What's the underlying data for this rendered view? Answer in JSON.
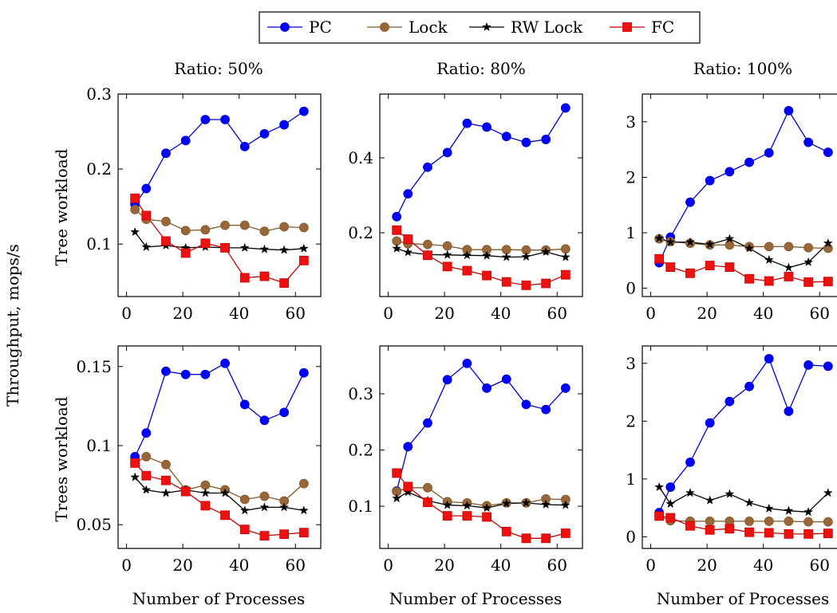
{
  "figure": {
    "shared_ylabel": "Throughput, mops/s",
    "row_labels": [
      "Tree workload",
      "Trees workload"
    ],
    "col_titles": [
      "Ratio: 50%",
      "Ratio: 80%",
      "Ratio: 100%"
    ],
    "xlabel": "Number of Processes"
  },
  "legend": [
    {
      "name": "PC",
      "color": "#0000cc",
      "marker": "circle",
      "marker_fill": "#0000ff"
    },
    {
      "name": "Lock",
      "color": "#7f5926",
      "marker": "circle",
      "marker_fill": "#99663a"
    },
    {
      "name": "RW Lock",
      "color": "#000000",
      "marker": "star",
      "marker_fill": "#000000"
    },
    {
      "name": "FC",
      "color": "#cc0000",
      "marker": "square",
      "marker_fill": "#ee1111"
    }
  ],
  "chart_data": [
    {
      "type": "line",
      "title": "Ratio: 50%",
      "ylabel": "Tree workload",
      "xlabel": "",
      "x": [
        3,
        7,
        14,
        21,
        28,
        35,
        42,
        49,
        56,
        63
      ],
      "xlim": [
        -3,
        69
      ],
      "ylim": [
        0.03,
        0.3
      ],
      "xticks": [
        0,
        20,
        40,
        60
      ],
      "xtick_labels": [
        "0",
        "20",
        "40",
        "60"
      ],
      "yticks": [
        0.1,
        0.2,
        0.3
      ],
      "ytick_labels": [
        "0.1",
        "0.2",
        "0.3"
      ],
      "series": [
        {
          "name": "PC",
          "values": [
            0.153,
            0.174,
            0.221,
            0.238,
            0.266,
            0.266,
            0.23,
            0.247,
            0.259,
            0.277
          ]
        },
        {
          "name": "Lock",
          "values": [
            0.146,
            0.133,
            0.13,
            0.118,
            0.119,
            0.125,
            0.125,
            0.117,
            0.123,
            0.122
          ]
        },
        {
          "name": "RW Lock",
          "values": [
            0.116,
            0.096,
            0.098,
            0.095,
            0.096,
            0.095,
            0.095,
            0.093,
            0.092,
            0.094
          ]
        },
        {
          "name": "FC",
          "values": [
            0.161,
            0.138,
            0.104,
            0.088,
            0.101,
            0.095,
            0.055,
            0.057,
            0.048,
            0.078
          ]
        }
      ]
    },
    {
      "type": "line",
      "title": "Ratio: 80%",
      "ylabel": "",
      "xlabel": "",
      "x": [
        3,
        7,
        14,
        21,
        28,
        35,
        42,
        49,
        56,
        63
      ],
      "xlim": [
        -3,
        69
      ],
      "ylim": [
        0.03,
        0.57
      ],
      "xticks": [
        0,
        20,
        40,
        60
      ],
      "xtick_labels": [
        "0",
        "20",
        "40",
        "60"
      ],
      "yticks": [
        0.2,
        0.4
      ],
      "ytick_labels": [
        "0.2",
        "0.4"
      ],
      "series": [
        {
          "name": "PC",
          "values": [
            0.243,
            0.304,
            0.375,
            0.414,
            0.492,
            0.482,
            0.457,
            0.441,
            0.449,
            0.533
          ]
        },
        {
          "name": "Lock",
          "values": [
            0.178,
            0.171,
            0.169,
            0.165,
            0.155,
            0.155,
            0.155,
            0.154,
            0.154,
            0.157
          ]
        },
        {
          "name": "RW Lock",
          "values": [
            0.158,
            0.148,
            0.142,
            0.141,
            0.14,
            0.139,
            0.135,
            0.136,
            0.149,
            0.135
          ]
        },
        {
          "name": "FC",
          "values": [
            0.207,
            0.183,
            0.14,
            0.11,
            0.099,
            0.086,
            0.069,
            0.06,
            0.065,
            0.088
          ]
        }
      ]
    },
    {
      "type": "line",
      "title": "Ratio: 100%",
      "ylabel": "",
      "xlabel": "",
      "x": [
        3,
        7,
        14,
        21,
        28,
        35,
        42,
        49,
        56,
        63
      ],
      "xlim": [
        -3,
        69
      ],
      "ylim": [
        -0.15,
        3.5
      ],
      "xticks": [
        0,
        20,
        40,
        60
      ],
      "xtick_labels": [
        "0",
        "20",
        "40",
        "60"
      ],
      "yticks": [
        0,
        1,
        2,
        3
      ],
      "ytick_labels": [
        "0",
        "1",
        "2",
        "3"
      ],
      "series": [
        {
          "name": "PC",
          "values": [
            0.46,
            0.92,
            1.55,
            1.94,
            2.1,
            2.27,
            2.44,
            3.2,
            2.63,
            2.45
          ]
        },
        {
          "name": "Lock",
          "values": [
            0.89,
            0.84,
            0.81,
            0.78,
            0.78,
            0.75,
            0.75,
            0.75,
            0.73,
            0.72
          ]
        },
        {
          "name": "RW Lock",
          "values": [
            0.9,
            0.83,
            0.83,
            0.79,
            0.89,
            0.72,
            0.51,
            0.37,
            0.47,
            0.81
          ]
        },
        {
          "name": "FC",
          "values": [
            0.53,
            0.38,
            0.27,
            0.41,
            0.38,
            0.17,
            0.13,
            0.21,
            0.11,
            0.12
          ]
        }
      ]
    },
    {
      "type": "line",
      "title": "",
      "ylabel": "Trees workload",
      "xlabel": "Number of Processes",
      "x": [
        3,
        7,
        14,
        21,
        28,
        35,
        42,
        49,
        56,
        63
      ],
      "xlim": [
        -3,
        69
      ],
      "ylim": [
        0.035,
        0.163
      ],
      "xticks": [
        0,
        20,
        40,
        60
      ],
      "xtick_labels": [
        "0",
        "20",
        "40",
        "60"
      ],
      "yticks": [
        0.05,
        0.1,
        0.15
      ],
      "ytick_labels": [
        "0.05",
        "0.1",
        "0.15"
      ],
      "series": [
        {
          "name": "PC",
          "values": [
            0.093,
            0.108,
            0.147,
            0.145,
            0.145,
            0.152,
            0.126,
            0.116,
            0.121,
            0.146
          ]
        },
        {
          "name": "Lock",
          "values": [
            0.089,
            0.093,
            0.088,
            0.072,
            0.075,
            0.072,
            0.066,
            0.068,
            0.065,
            0.076
          ]
        },
        {
          "name": "RW Lock",
          "values": [
            0.08,
            0.072,
            0.07,
            0.072,
            0.07,
            0.07,
            0.059,
            0.061,
            0.061,
            0.059
          ]
        },
        {
          "name": "FC",
          "values": [
            0.089,
            0.081,
            0.078,
            0.071,
            0.062,
            0.056,
            0.047,
            0.043,
            0.044,
            0.045
          ]
        }
      ]
    },
    {
      "type": "line",
      "title": "",
      "ylabel": "",
      "xlabel": "Number of Processes",
      "x": [
        3,
        7,
        14,
        21,
        28,
        35,
        42,
        49,
        56,
        63
      ],
      "xlim": [
        -3,
        69
      ],
      "ylim": [
        0.025,
        0.385
      ],
      "xticks": [
        0,
        20,
        40,
        60
      ],
      "xtick_labels": [
        "0",
        "20",
        "40",
        "60"
      ],
      "yticks": [
        0.1,
        0.2,
        0.3
      ],
      "ytick_labels": [
        "0.1",
        "0.2",
        "0.3"
      ],
      "series": [
        {
          "name": "PC",
          "values": [
            0.127,
            0.206,
            0.248,
            0.325,
            0.354,
            0.31,
            0.326,
            0.281,
            0.272,
            0.31
          ]
        },
        {
          "name": "Lock",
          "values": [
            0.126,
            0.133,
            0.133,
            0.108,
            0.106,
            0.101,
            0.106,
            0.106,
            0.113,
            0.112
          ]
        },
        {
          "name": "RW Lock",
          "values": [
            0.114,
            0.125,
            0.11,
            0.102,
            0.101,
            0.097,
            0.105,
            0.106,
            0.103,
            0.102
          ]
        },
        {
          "name": "FC",
          "values": [
            0.159,
            0.135,
            0.107,
            0.083,
            0.083,
            0.081,
            0.055,
            0.043,
            0.043,
            0.052
          ]
        }
      ]
    },
    {
      "type": "line",
      "title": "",
      "ylabel": "",
      "xlabel": "Number of Processes",
      "x": [
        3,
        7,
        14,
        21,
        28,
        35,
        42,
        49,
        56,
        63
      ],
      "xlim": [
        -3,
        69
      ],
      "ylim": [
        -0.2,
        3.3
      ],
      "xticks": [
        0,
        20,
        40,
        60
      ],
      "xtick_labels": [
        "0",
        "20",
        "40",
        "60"
      ],
      "yticks": [
        0,
        1,
        2,
        3
      ],
      "ytick_labels": [
        "0",
        "1",
        "2",
        "3"
      ],
      "series": [
        {
          "name": "PC",
          "values": [
            0.42,
            0.86,
            1.29,
            1.97,
            2.34,
            2.6,
            3.08,
            2.17,
            2.97,
            2.95
          ]
        },
        {
          "name": "Lock",
          "values": [
            0.36,
            0.28,
            0.27,
            0.27,
            0.27,
            0.27,
            0.27,
            0.27,
            0.26,
            0.26
          ]
        },
        {
          "name": "RW Lock",
          "values": [
            0.86,
            0.57,
            0.76,
            0.63,
            0.74,
            0.59,
            0.49,
            0.45,
            0.43,
            0.76
          ]
        },
        {
          "name": "FC",
          "values": [
            0.36,
            0.33,
            0.19,
            0.12,
            0.14,
            0.08,
            0.07,
            0.05,
            0.05,
            0.06
          ]
        }
      ]
    }
  ]
}
